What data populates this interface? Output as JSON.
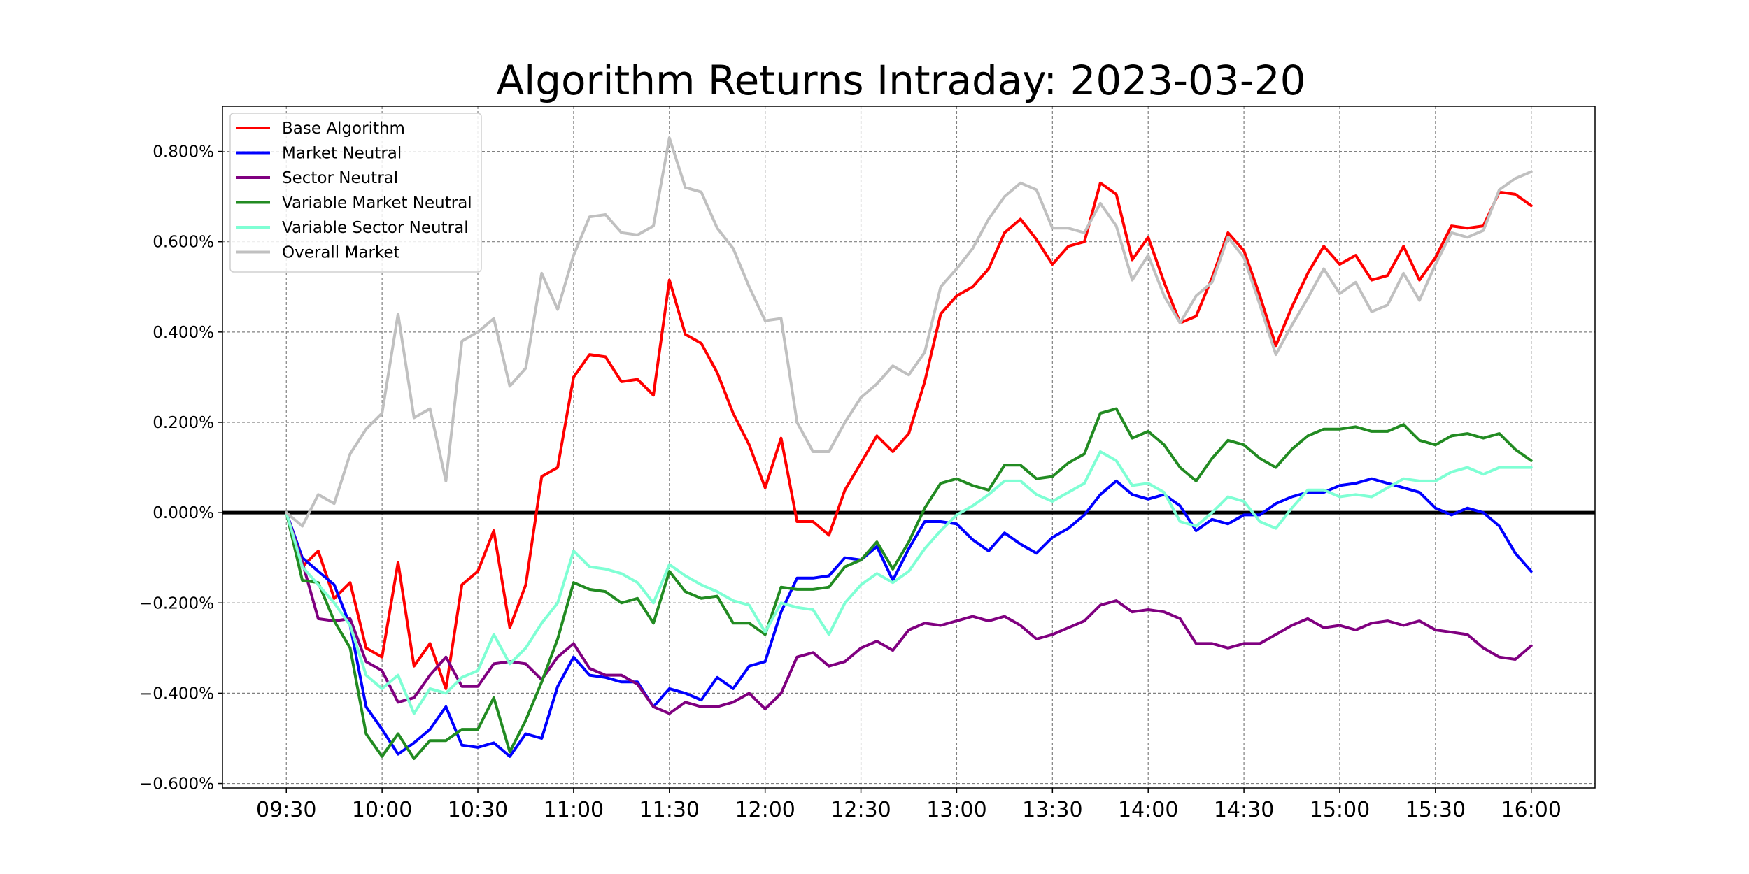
{
  "chart_data": {
    "type": "line",
    "title": "Algorithm Returns Intraday: 2023-03-20",
    "xlabel": "",
    "ylabel": "",
    "x_ticks": [
      "09:30",
      "10:00",
      "10:30",
      "11:00",
      "11:30",
      "12:00",
      "12:30",
      "13:00",
      "13:30",
      "14:00",
      "14:30",
      "15:00",
      "15:30",
      "16:00"
    ],
    "x_range_minutes": [
      -20,
      410
    ],
    "x_step_minutes": 5,
    "ylim": [
      -0.61,
      0.9
    ],
    "y_ticks": [
      -0.6,
      -0.4,
      -0.2,
      0.0,
      0.2,
      0.4,
      0.6,
      0.8
    ],
    "y_tick_labels": [
      "−0.600%",
      "−0.400%",
      "−0.200%",
      "0.000%",
      "0.200%",
      "0.400%",
      "0.600%",
      "0.800%"
    ],
    "grid": true,
    "zero_line": true,
    "legend_position": "top-left",
    "series": [
      {
        "name": "Base Algorithm",
        "color": "#ff0000",
        "values": [
          0,
          -0.12,
          -0.085,
          -0.19,
          -0.155,
          -0.3,
          -0.32,
          -0.11,
          -0.34,
          -0.29,
          -0.39,
          -0.16,
          -0.13,
          -0.04,
          -0.255,
          -0.16,
          0.08,
          0.1,
          0.3,
          0.35,
          0.345,
          0.29,
          0.295,
          0.26,
          0.515,
          0.395,
          0.375,
          0.31,
          0.22,
          0.15,
          0.055,
          0.165,
          -0.02,
          -0.02,
          -0.05,
          0.05,
          0.11,
          0.17,
          0.135,
          0.175,
          0.29,
          0.44,
          0.48,
          0.5,
          0.54,
          0.62,
          0.65,
          0.605,
          0.55,
          0.59,
          0.6,
          0.73,
          0.705,
          0.56,
          0.61,
          0.51,
          0.42,
          0.435,
          0.52,
          0.62,
          0.58,
          0.48,
          0.37,
          0.455,
          0.53,
          0.59,
          0.55,
          0.57,
          0.515,
          0.525,
          0.59,
          0.515,
          0.565,
          0.635,
          0.63,
          0.635,
          0.71,
          0.705,
          0.68
        ]
      },
      {
        "name": "Market Neutral",
        "color": "#0000ff",
        "values": [
          0,
          -0.1,
          -0.13,
          -0.16,
          -0.25,
          -0.43,
          -0.48,
          -0.535,
          -0.51,
          -0.48,
          -0.43,
          -0.515,
          -0.52,
          -0.51,
          -0.54,
          -0.49,
          -0.5,
          -0.385,
          -0.32,
          -0.36,
          -0.365,
          -0.375,
          -0.375,
          -0.43,
          -0.39,
          -0.4,
          -0.415,
          -0.365,
          -0.39,
          -0.34,
          -0.33,
          -0.22,
          -0.145,
          -0.145,
          -0.14,
          -0.1,
          -0.105,
          -0.075,
          -0.15,
          -0.08,
          -0.02,
          -0.02,
          -0.025,
          -0.06,
          -0.085,
          -0.045,
          -0.07,
          -0.09,
          -0.055,
          -0.035,
          -0.005,
          0.04,
          0.07,
          0.04,
          0.03,
          0.04,
          0.015,
          -0.04,
          -0.015,
          -0.025,
          -0.005,
          -0.005,
          0.02,
          0.035,
          0.045,
          0.045,
          0.06,
          0.065,
          0.075,
          0.065,
          0.055,
          0.045,
          0.01,
          -0.005,
          0.01,
          0.0,
          -0.03,
          -0.09,
          -0.13
        ]
      },
      {
        "name": "Sector Neutral",
        "color": "#800080",
        "values": [
          0,
          -0.11,
          -0.235,
          -0.24,
          -0.235,
          -0.33,
          -0.35,
          -0.42,
          -0.41,
          -0.36,
          -0.32,
          -0.385,
          -0.385,
          -0.335,
          -0.33,
          -0.335,
          -0.37,
          -0.32,
          -0.29,
          -0.345,
          -0.36,
          -0.36,
          -0.38,
          -0.43,
          -0.445,
          -0.42,
          -0.43,
          -0.43,
          -0.42,
          -0.4,
          -0.435,
          -0.4,
          -0.32,
          -0.31,
          -0.34,
          -0.33,
          -0.3,
          -0.285,
          -0.305,
          -0.26,
          -0.245,
          -0.25,
          -0.24,
          -0.23,
          -0.24,
          -0.23,
          -0.25,
          -0.28,
          -0.27,
          -0.255,
          -0.24,
          -0.205,
          -0.195,
          -0.22,
          -0.215,
          -0.22,
          -0.235,
          -0.29,
          -0.29,
          -0.3,
          -0.29,
          -0.29,
          -0.27,
          -0.25,
          -0.235,
          -0.255,
          -0.25,
          -0.26,
          -0.245,
          -0.24,
          -0.25,
          -0.24,
          -0.26,
          -0.265,
          -0.27,
          -0.3,
          -0.32,
          -0.325,
          -0.295
        ]
      },
      {
        "name": "Variable Market Neutral",
        "color": "#228b22",
        "values": [
          0,
          -0.15,
          -0.155,
          -0.24,
          -0.3,
          -0.49,
          -0.54,
          -0.49,
          -0.545,
          -0.505,
          -0.505,
          -0.48,
          -0.48,
          -0.41,
          -0.53,
          -0.46,
          -0.375,
          -0.28,
          -0.155,
          -0.17,
          -0.175,
          -0.2,
          -0.19,
          -0.245,
          -0.13,
          -0.175,
          -0.19,
          -0.185,
          -0.245,
          -0.245,
          -0.27,
          -0.165,
          -0.17,
          -0.17,
          -0.165,
          -0.12,
          -0.105,
          -0.065,
          -0.125,
          -0.065,
          0.01,
          0.065,
          0.075,
          0.06,
          0.05,
          0.105,
          0.105,
          0.075,
          0.08,
          0.11,
          0.13,
          0.22,
          0.23,
          0.165,
          0.18,
          0.15,
          0.1,
          0.07,
          0.12,
          0.16,
          0.15,
          0.12,
          0.1,
          0.14,
          0.17,
          0.185,
          0.185,
          0.19,
          0.18,
          0.18,
          0.195,
          0.16,
          0.15,
          0.17,
          0.175,
          0.165,
          0.175,
          0.14,
          0.115
        ]
      },
      {
        "name": "Variable Sector Neutral",
        "color": "#7fffd4",
        "values": [
          0,
          -0.12,
          -0.16,
          -0.2,
          -0.25,
          -0.36,
          -0.39,
          -0.36,
          -0.445,
          -0.39,
          -0.4,
          -0.365,
          -0.35,
          -0.27,
          -0.335,
          -0.3,
          -0.245,
          -0.2,
          -0.085,
          -0.12,
          -0.125,
          -0.135,
          -0.155,
          -0.2,
          -0.115,
          -0.14,
          -0.16,
          -0.175,
          -0.195,
          -0.205,
          -0.265,
          -0.2,
          -0.21,
          -0.215,
          -0.27,
          -0.2,
          -0.16,
          -0.135,
          -0.155,
          -0.13,
          -0.08,
          -0.04,
          -0.005,
          0.015,
          0.04,
          0.07,
          0.07,
          0.04,
          0.025,
          0.045,
          0.065,
          0.135,
          0.115,
          0.06,
          0.065,
          0.045,
          -0.02,
          -0.03,
          0.0,
          0.035,
          0.025,
          -0.02,
          -0.035,
          0.01,
          0.05,
          0.05,
          0.035,
          0.04,
          0.035,
          0.055,
          0.075,
          0.07,
          0.07,
          0.09,
          0.1,
          0.085,
          0.1,
          0.1,
          0.1
        ]
      },
      {
        "name": "Overall Market",
        "color": "#c0c0c0",
        "values": [
          0,
          -0.03,
          0.04,
          0.02,
          0.13,
          0.185,
          0.22,
          0.44,
          0.21,
          0.23,
          0.07,
          0.38,
          0.4,
          0.43,
          0.28,
          0.32,
          0.53,
          0.45,
          0.57,
          0.655,
          0.66,
          0.62,
          0.615,
          0.635,
          0.83,
          0.72,
          0.71,
          0.63,
          0.585,
          0.5,
          0.425,
          0.43,
          0.2,
          0.135,
          0.135,
          0.2,
          0.255,
          0.285,
          0.325,
          0.305,
          0.355,
          0.5,
          0.54,
          0.585,
          0.65,
          0.7,
          0.73,
          0.715,
          0.63,
          0.63,
          0.62,
          0.685,
          0.635,
          0.515,
          0.57,
          0.48,
          0.42,
          0.48,
          0.51,
          0.61,
          0.565,
          0.46,
          0.35,
          0.415,
          0.475,
          0.54,
          0.485,
          0.51,
          0.445,
          0.46,
          0.53,
          0.47,
          0.55,
          0.62,
          0.61,
          0.625,
          0.715,
          0.74,
          0.755
        ]
      }
    ]
  }
}
